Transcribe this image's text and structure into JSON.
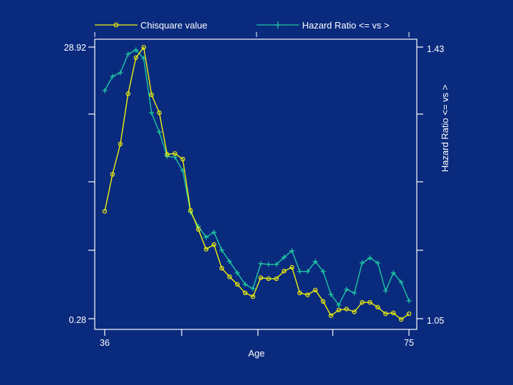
{
  "colors": {
    "background": "#0a2a7e",
    "axis": "#ffffff",
    "chisq": "#f2f20a",
    "hazard": "#1ec8a0"
  },
  "chart_data": {
    "type": "line",
    "title": "",
    "xlabel": "Age",
    "ylabel_left": "",
    "ylabel_right": "Hazard Ratio <= vs >",
    "x_tick_labels": [
      "36",
      "75"
    ],
    "y_left_tick_labels": [
      "28.92",
      "0.28"
    ],
    "y_right_tick_labels": [
      "1.43",
      "1.05"
    ],
    "xlim": [
      36,
      75
    ],
    "ylim_left": [
      0.28,
      28.92
    ],
    "ylim_right": [
      1.05,
      1.43
    ],
    "legend": {
      "placement": "top",
      "entries": [
        "Chisquare value",
        "Hazard Ratio <= vs >"
      ]
    },
    "x": [
      36,
      37,
      38,
      39,
      40,
      41,
      42,
      43,
      44,
      45,
      46,
      47,
      48,
      49,
      50,
      51,
      52,
      53,
      54,
      55,
      56,
      57,
      58,
      59,
      60,
      61,
      62,
      63,
      64,
      65,
      66,
      67,
      68,
      69,
      70,
      71,
      72,
      73,
      74,
      75
    ],
    "series": [
      {
        "name": "Chisquare value",
        "axis": "left",
        "marker": "circle",
        "values": [
          11.6,
          15.5,
          18.7,
          24.0,
          27.8,
          28.9,
          23.9,
          22.0,
          17.6,
          17.7,
          17.1,
          11.7,
          9.7,
          7.6,
          8.1,
          5.6,
          4.7,
          3.9,
          3.0,
          2.6,
          4.6,
          4.5,
          4.5,
          5.3,
          5.7,
          3.0,
          2.8,
          3.3,
          2.1,
          0.6,
          1.2,
          1.3,
          1.0,
          2.0,
          2.0,
          1.5,
          0.8,
          0.9,
          0.2,
          0.8
        ]
      },
      {
        "name": "Hazard Ratio <= vs >",
        "axis": "right",
        "marker": "plus",
        "values": [
          1.369,
          1.389,
          1.394,
          1.42,
          1.426,
          1.414,
          1.338,
          1.311,
          1.277,
          1.276,
          1.257,
          1.199,
          1.179,
          1.164,
          1.171,
          1.146,
          1.13,
          1.114,
          1.098,
          1.092,
          1.127,
          1.126,
          1.126,
          1.136,
          1.145,
          1.116,
          1.116,
          1.13,
          1.116,
          1.084,
          1.069,
          1.091,
          1.086,
          1.128,
          1.135,
          1.128,
          1.089,
          1.114,
          1.101,
          1.075
        ]
      }
    ]
  }
}
